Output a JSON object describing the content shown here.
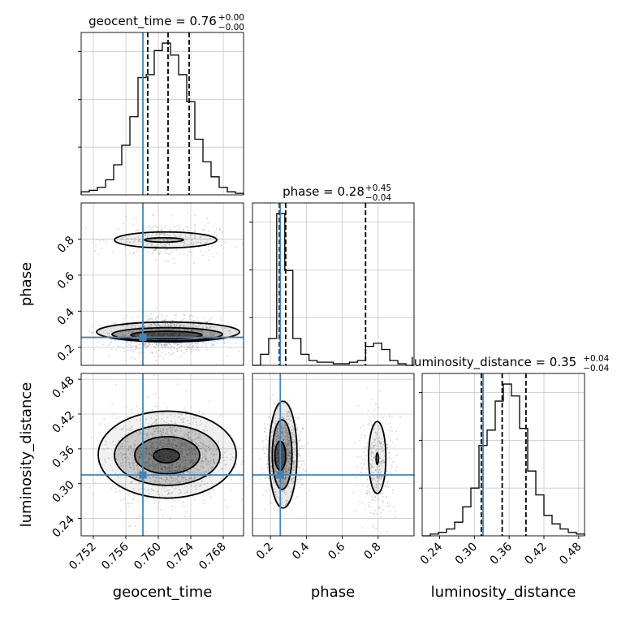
{
  "chart_data": {
    "type": "corner",
    "parameters": [
      "geocent_time",
      "phase",
      "luminosity_distance"
    ],
    "axis_labels": [
      "geocent_time",
      "phase",
      "luminosity_distance"
    ],
    "ranges": {
      "geocent_time": [
        0.7505,
        0.7705
      ],
      "phase": [
        0.1,
        1.0
      ],
      "luminosity_distance": [
        0.21,
        0.49
      ]
    },
    "ticks": {
      "geocent_time": {
        "values": [
          0.752,
          0.756,
          0.76,
          0.764,
          0.768
        ],
        "labels": [
          "0.752",
          "0.756",
          "0.760",
          "0.764",
          "0.768"
        ]
      },
      "phase": {
        "values": [
          0.2,
          0.4,
          0.6,
          0.8
        ],
        "labels": [
          "0.2",
          "0.4",
          "0.6",
          "0.8"
        ]
      },
      "luminosity_distance": {
        "values": [
          0.24,
          0.3,
          0.36,
          0.42,
          0.48
        ],
        "labels": [
          "0.24",
          "0.30",
          "0.36",
          "0.42",
          "0.48"
        ]
      }
    },
    "truths": {
      "geocent_time": 0.7581,
      "phase": 0.255,
      "luminosity_distance": 0.315
    },
    "truth_color": "#4682b4",
    "titles": [
      {
        "param": "geocent_time",
        "label": "geocent_time",
        "median": "0.76",
        "plus": "+0.00",
        "minus": "−0.00"
      },
      {
        "param": "phase",
        "label": "phase",
        "median": "0.28",
        "plus": "+0.45",
        "minus": "−0.04"
      },
      {
        "param": "luminosity_distance",
        "label": "luminosity_distance",
        "median": "0.35",
        "plus": "+0.04",
        "minus": "−0.04"
      }
    ],
    "quantiles": {
      "geocent_time": [
        0.7587,
        0.7612,
        0.7638
      ],
      "phase": [
        0.25,
        0.285,
        0.73
      ],
      "luminosity_distance": [
        0.312,
        0.348,
        0.389
      ]
    },
    "histograms": {
      "geocent_time": {
        "edges": [
          0.7505,
          0.7515,
          0.7525,
          0.7535,
          0.7545,
          0.7555,
          0.7565,
          0.7575,
          0.7585,
          0.7595,
          0.7605,
          0.7615,
          0.7625,
          0.7635,
          0.7645,
          0.7655,
          0.7665,
          0.7675,
          0.7685,
          0.7695,
          0.7705
        ],
        "counts": [
          2,
          3,
          5,
          10,
          20,
          33,
          52,
          78,
          80,
          96,
          101,
          93,
          80,
          62,
          37,
          22,
          12,
          5,
          2,
          1
        ]
      },
      "phase": {
        "edges": [
          0.1,
          0.145,
          0.19,
          0.235,
          0.28,
          0.325,
          0.37,
          0.415,
          0.46,
          0.505,
          0.55,
          0.595,
          0.64,
          0.685,
          0.73,
          0.775,
          0.82,
          0.865,
          0.91,
          0.955,
          1.0
        ],
        "counts": [
          0,
          7,
          17,
          96,
          60,
          17,
          7,
          3,
          2,
          2,
          1,
          1,
          2,
          3,
          12,
          14,
          10,
          3,
          1,
          0
        ]
      },
      "luminosity_distance": {
        "edges": [
          0.21,
          0.224,
          0.238,
          0.252,
          0.266,
          0.28,
          0.294,
          0.308,
          0.322,
          0.336,
          0.35,
          0.364,
          0.378,
          0.392,
          0.406,
          0.42,
          0.434,
          0.448,
          0.462,
          0.476,
          0.49
        ],
        "counts": [
          0,
          1,
          2,
          4,
          8,
          17,
          28,
          53,
          62,
          79,
          89,
          82,
          63,
          38,
          24,
          12,
          7,
          4,
          2,
          1
        ]
      }
    },
    "clusters": [
      {
        "mean": [
          0.7612,
          0.27,
          0.348
        ],
        "sd": [
          0.0028,
          0.04,
          0.03
        ],
        "weight": 0.78
      },
      {
        "mean": [
          0.7608,
          0.795,
          0.335
        ],
        "sd": [
          0.0028,
          0.045,
          0.04
        ],
        "weight": 0.22
      }
    ],
    "contours": {
      "phase_vs_geocent_time": [
        {
          "center": [
            0.761,
            0.268
          ],
          "radius": [
            0.0044,
            0.021
          ],
          "fill_alpha": 0.85
        },
        {
          "center": [
            0.7611,
            0.272
          ],
          "radius": [
            0.0068,
            0.036
          ],
          "fill_alpha": 0.5
        },
        {
          "center": [
            0.7612,
            0.285
          ],
          "radius": [
            0.0088,
            0.055
          ],
          "fill_alpha": 0.2
        },
        {
          "center": [
            0.7607,
            0.795
          ],
          "radius": [
            0.0024,
            0.012
          ],
          "fill_alpha": 0.3
        },
        {
          "center": [
            0.7609,
            0.795
          ],
          "radius": [
            0.0063,
            0.044
          ],
          "fill_alpha": 0.12
        }
      ],
      "luminosity_distance_vs_geocent_time": [
        {
          "center": [
            0.761,
            0.348
          ],
          "radius": [
            0.0016,
            0.012
          ],
          "fill_alpha": 0.9
        },
        {
          "center": [
            0.7611,
            0.349
          ],
          "radius": [
            0.004,
            0.032
          ],
          "fill_alpha": 0.6
        },
        {
          "center": [
            0.7611,
            0.349
          ],
          "radius": [
            0.0065,
            0.052
          ],
          "fill_alpha": 0.3
        },
        {
          "center": [
            0.7611,
            0.35
          ],
          "radius": [
            0.0085,
            0.075
          ],
          "fill_alpha": 0.1
        }
      ],
      "luminosity_distance_vs_phase": [
        {
          "center": [
            0.255,
            0.348
          ],
          "radius": [
            0.03,
            0.025
          ],
          "fill_alpha": 0.85
        },
        {
          "center": [
            0.265,
            0.35
          ],
          "radius": [
            0.055,
            0.06
          ],
          "fill_alpha": 0.45
        },
        {
          "center": [
            0.27,
            0.35
          ],
          "radius": [
            0.078,
            0.092
          ],
          "fill_alpha": 0.15
        },
        {
          "center": [
            0.795,
            0.343
          ],
          "radius": [
            0.006,
            0.01
          ],
          "fill_alpha": 0.4
        },
        {
          "center": [
            0.795,
            0.345
          ],
          "radius": [
            0.048,
            0.062
          ],
          "fill_alpha": 0.12
        }
      ]
    },
    "grid": true,
    "sample_color": "#888888"
  }
}
